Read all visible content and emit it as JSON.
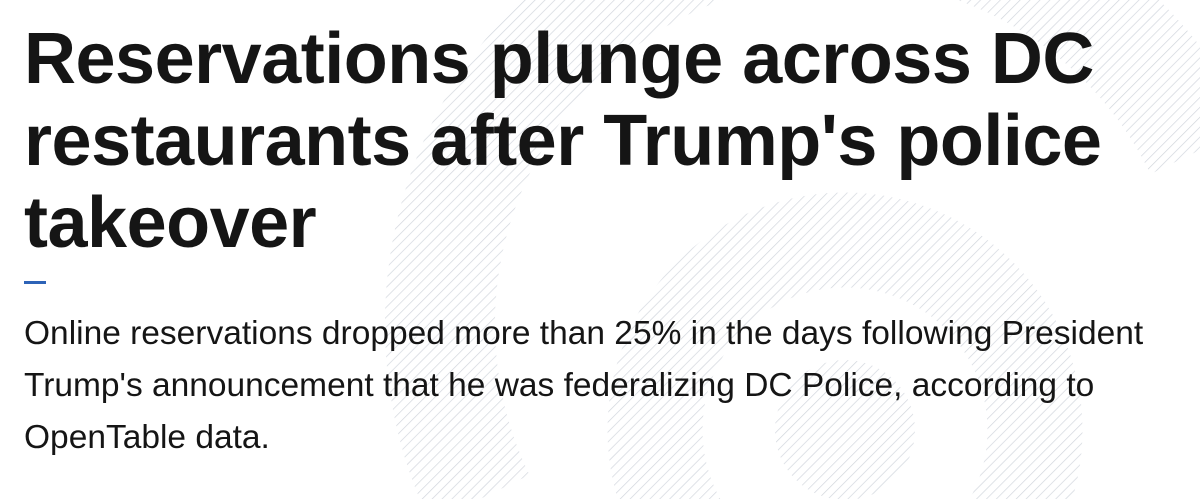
{
  "article": {
    "headline": "Reservations plunge across DC restaurants after Trump's police takeover",
    "dek": "Online reservations dropped more than 25% in the days following President Trump's announcement that he was federalizing DC Police, according to OpenTable data."
  },
  "colors": {
    "text": "#151515",
    "accent": "#2d63b7",
    "pattern_stroke": "#d5d8de",
    "background": "#ffffff"
  }
}
